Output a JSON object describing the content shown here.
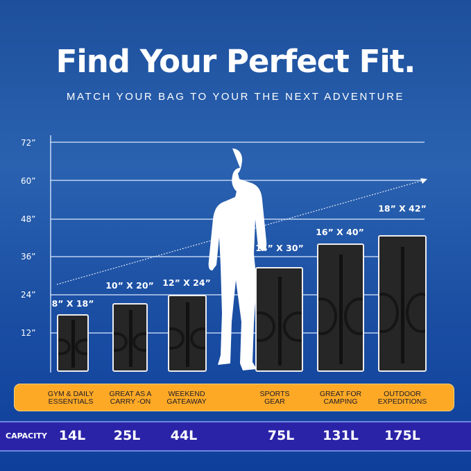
{
  "title": "Find Your Perfect Fit.",
  "subtitle": "MATCH YOUR BAG TO YOUR THE NEXT ADVENTURE",
  "y_ticks": [
    "72”",
    "60”",
    "48”",
    "36”",
    "24”",
    "12”"
  ],
  "bags": [
    {
      "dims": "8” X 18”",
      "use_line1": "GYM & DAILY",
      "use_line2": "ESSENTIALS",
      "capacity": "14L"
    },
    {
      "dims": "10” X 20”",
      "use_line1": "GREAT AS A",
      "use_line2": "CARRY -ON",
      "capacity": "25L"
    },
    {
      "dims": "12” X 24”",
      "use_line1": "WEEKEND",
      "use_line2": "GATEAWAY",
      "capacity": "44L"
    },
    {
      "dims": "14” X 30”",
      "use_line1": "SPORTS",
      "use_line2": "GEAR",
      "capacity": "75L"
    },
    {
      "dims": "16” X 40”",
      "use_line1": "GREAT FOR",
      "use_line2": "CAMPING",
      "capacity": "131L"
    },
    {
      "dims": "18” X 42”",
      "use_line1": "OUTDOOR",
      "use_line2": "EXPEDITIONS",
      "capacity": "175L"
    }
  ],
  "capacity_label": "CAPACITY",
  "colors": {
    "background": "#1d4f9c",
    "use_bar": "#fda925",
    "capacity_band": "#2a23a8",
    "bag": "#262626"
  }
}
